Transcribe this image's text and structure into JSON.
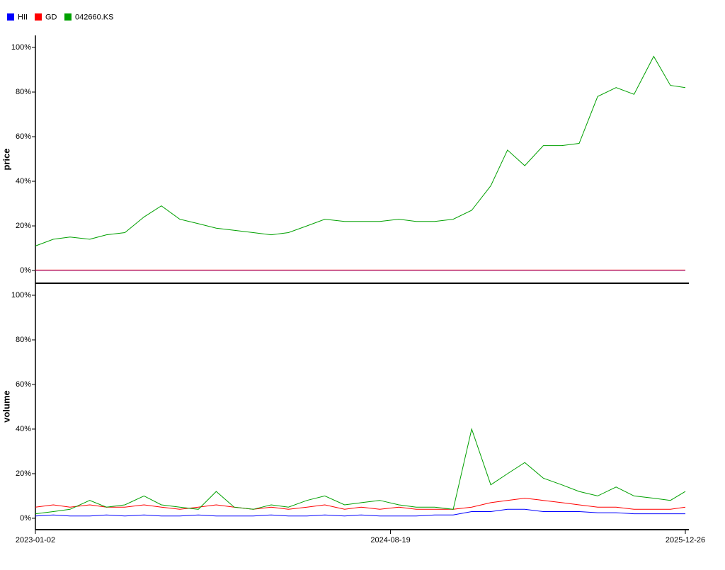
{
  "chart_data": [
    {
      "type": "line",
      "ylabel": "price",
      "x": [
        "2023-01-02",
        "2023-02-01",
        "2023-03-01",
        "2023-04-03",
        "2023-05-01",
        "2023-06-01",
        "2023-07-03",
        "2023-08-01",
        "2023-09-01",
        "2023-10-02",
        "2023-11-01",
        "2023-12-01",
        "2024-01-02",
        "2024-02-01",
        "2024-03-01",
        "2024-04-01",
        "2024-05-01",
        "2024-06-03",
        "2024-07-01",
        "2024-08-01",
        "2024-09-02",
        "2024-10-01",
        "2024-11-01",
        "2024-12-02",
        "2025-01-02",
        "2025-02-03",
        "2025-03-03",
        "2025-04-01",
        "2025-05-02",
        "2025-06-02",
        "2025-07-01",
        "2025-08-01",
        "2025-09-01",
        "2025-10-01",
        "2025-11-03",
        "2025-12-01",
        "2025-12-26"
      ],
      "xlim": [
        "2023-01-02",
        "2025-12-26"
      ],
      "ylim": [
        -5.7,
        105.4
      ],
      "yticks": [
        {
          "value": 0,
          "label": "0%"
        },
        {
          "value": 20,
          "label": "20%"
        },
        {
          "value": 40,
          "label": "40%"
        },
        {
          "value": 60,
          "label": "60%"
        },
        {
          "value": 80,
          "label": "80%"
        },
        {
          "value": 100,
          "label": "100%"
        }
      ],
      "series": [
        {
          "name": "HII",
          "color": "#0000ff",
          "values": [
            0.1,
            0.1,
            0.1,
            0.1,
            0.1,
            0.1,
            0.1,
            0.1,
            0.1,
            0.1,
            0.1,
            0.1,
            0.1,
            0.1,
            0.1,
            0.1,
            0.1,
            0.1,
            0.1,
            0.1,
            0.1,
            0.1,
            0.1,
            0.1,
            0.1,
            0.1,
            0.1,
            0.1,
            0.1,
            0.1,
            0.1,
            0.1,
            0.1,
            0.1,
            0.1,
            0.1,
            0.1
          ]
        },
        {
          "name": "GD",
          "color": "#ff0000",
          "values": [
            0.2,
            0.2,
            0.2,
            0.2,
            0.2,
            0.2,
            0.2,
            0.2,
            0.2,
            0.2,
            0.2,
            0.2,
            0.2,
            0.2,
            0.2,
            0.2,
            0.2,
            0.2,
            0.2,
            0.2,
            0.2,
            0.2,
            0.2,
            0.2,
            0.2,
            0.2,
            0.2,
            0.2,
            0.2,
            0.2,
            0.2,
            0.2,
            0.2,
            0.2,
            0.2,
            0.2,
            0.2
          ]
        },
        {
          "name": "042660.KS",
          "color": "#00a000",
          "values": [
            11,
            14,
            15,
            14,
            16,
            17,
            24,
            29,
            23,
            21,
            19,
            18,
            17,
            16,
            17,
            20,
            23,
            22,
            22,
            22,
            23,
            22,
            22,
            23,
            27,
            38,
            54,
            47,
            56,
            56,
            57,
            78,
            82,
            79,
            96,
            83,
            82
          ]
        }
      ]
    },
    {
      "type": "line",
      "ylabel": "volume",
      "x": [
        "2023-01-02",
        "2023-02-01",
        "2023-03-01",
        "2023-04-03",
        "2023-05-01",
        "2023-06-01",
        "2023-07-03",
        "2023-08-01",
        "2023-09-01",
        "2023-10-02",
        "2023-11-01",
        "2023-12-01",
        "2024-01-02",
        "2024-02-01",
        "2024-03-01",
        "2024-04-01",
        "2024-05-01",
        "2024-06-03",
        "2024-07-01",
        "2024-08-01",
        "2024-09-02",
        "2024-10-01",
        "2024-11-01",
        "2024-12-02",
        "2025-01-02",
        "2025-02-03",
        "2025-03-03",
        "2025-04-01",
        "2025-05-02",
        "2025-06-02",
        "2025-07-01",
        "2025-08-01",
        "2025-09-01",
        "2025-10-01",
        "2025-11-03",
        "2025-12-01",
        "2025-12-26"
      ],
      "xlim": [
        "2023-01-02",
        "2025-12-26"
      ],
      "xticks": [
        "2023-01-02",
        "2024-08-19",
        "2025-12-26"
      ],
      "ylim": [
        -5.1,
        105.4
      ],
      "yticks": [
        {
          "value": 0,
          "label": "0%"
        },
        {
          "value": 20,
          "label": "20%"
        },
        {
          "value": 40,
          "label": "40%"
        },
        {
          "value": 60,
          "label": "60%"
        },
        {
          "value": 80,
          "label": "80%"
        },
        {
          "value": 100,
          "label": "100%"
        }
      ],
      "series": [
        {
          "name": "HII",
          "color": "#0000ff",
          "values": [
            1,
            1.5,
            1,
            1,
            1.5,
            1,
            1.5,
            1,
            1,
            1.5,
            1,
            1,
            1,
            1.5,
            1,
            1,
            1.5,
            1,
            1.5,
            1,
            1,
            1,
            1.5,
            1.5,
            3,
            3,
            4,
            4,
            3,
            3,
            3,
            2.5,
            2.5,
            2,
            2,
            2,
            2
          ]
        },
        {
          "name": "GD",
          "color": "#ff0000",
          "values": [
            5,
            6,
            5,
            6,
            5,
            5,
            6,
            5,
            4,
            5,
            6,
            5,
            4,
            5,
            4,
            5,
            6,
            4,
            5,
            4,
            5,
            4,
            4,
            4,
            5,
            7,
            8,
            9,
            8,
            7,
            6,
            5,
            5,
            4,
            4,
            4,
            5
          ]
        },
        {
          "name": "042660.KS",
          "color": "#00a000",
          "values": [
            2,
            3,
            4,
            8,
            5,
            6,
            10,
            6,
            5,
            4,
            12,
            5,
            4,
            6,
            5,
            8,
            10,
            6,
            7,
            8,
            6,
            5,
            5,
            4,
            40,
            15,
            20,
            25,
            18,
            15,
            12,
            10,
            14,
            10,
            9,
            8,
            12
          ]
        }
      ]
    }
  ]
}
